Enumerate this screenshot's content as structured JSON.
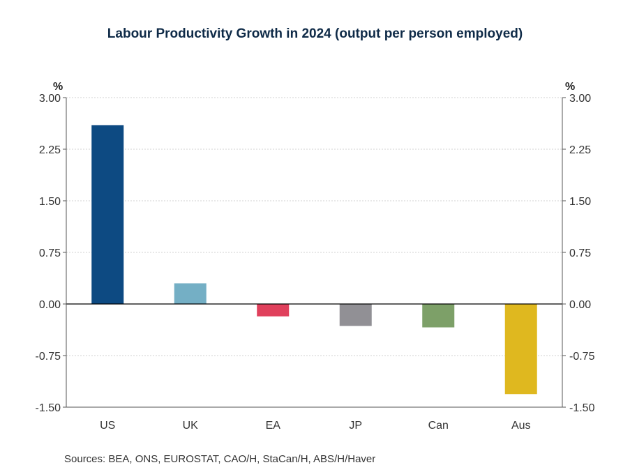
{
  "chart_data": {
    "type": "bar",
    "title": "Labour Productivity Growth in 2024 (output per person employed)",
    "ylabel_left": "%",
    "ylabel_right": "%",
    "categories": [
      "US",
      "UK",
      "EA",
      "JP",
      "Can",
      "Aus"
    ],
    "values": [
      2.6,
      0.3,
      -0.18,
      -0.32,
      -0.34,
      -1.31
    ],
    "colors": [
      "#0d4a82",
      "#74afc5",
      "#e0405c",
      "#919095",
      "#7da068",
      "#dfb81f"
    ],
    "ylim": [
      -1.5,
      3.0
    ],
    "yticks": [
      "3.00",
      "2.25",
      "1.50",
      "0.75",
      "0.00",
      "-0.75",
      "-1.50"
    ],
    "grid": true
  },
  "sources": "Sources:  BEA, ONS, EUROSTAT, CAO/H, StaCan/H, ABS/H/Haver"
}
